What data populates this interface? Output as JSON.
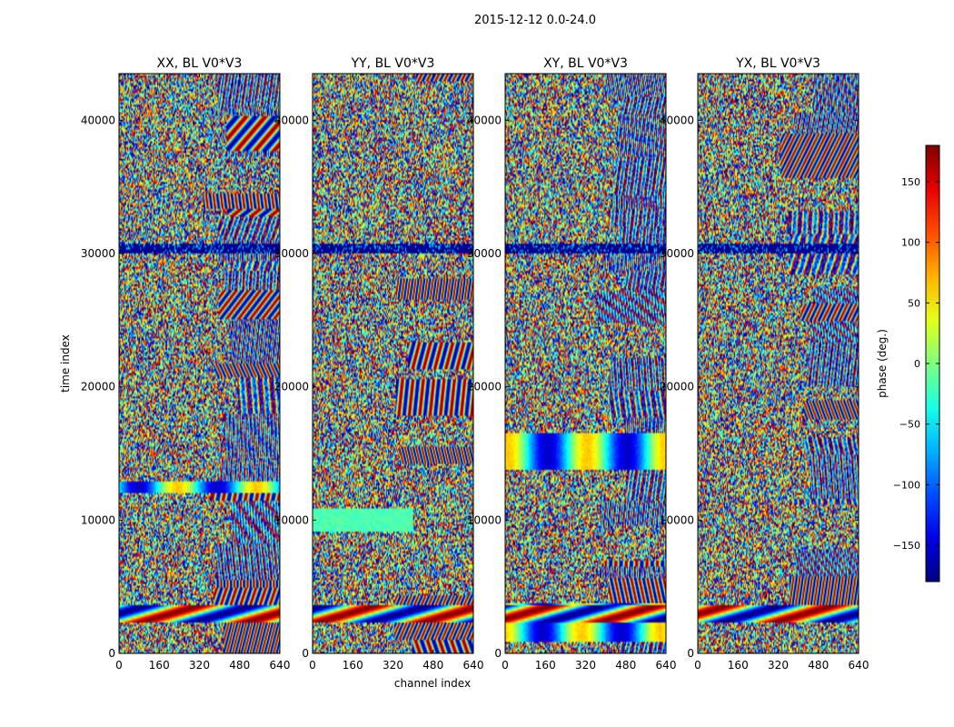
{
  "chart_data": {
    "type": "heatmap",
    "title": "2015-12-12 0.0-24.0",
    "xlabel": "channel index",
    "ylabel": "time index",
    "xlim": [
      0,
      640
    ],
    "ylim": [
      0,
      43500
    ],
    "x_ticks": [
      0,
      160,
      320,
      480,
      640
    ],
    "y_ticks": [
      0,
      10000,
      20000,
      30000,
      40000
    ],
    "value_range": [
      -180,
      180
    ],
    "colormap": "jet",
    "panels": [
      {
        "title": "XX, BL V0*V3",
        "polarization": "XX"
      },
      {
        "title": "YY, BL V0*V3",
        "polarization": "YY"
      },
      {
        "title": "XY, BL V0*V3",
        "polarization": "XY"
      },
      {
        "title": "YX, BL V0*V3",
        "polarization": "YX"
      }
    ],
    "colorbar": {
      "label": "phase (deg.)",
      "ticks": [
        150,
        100,
        50,
        0,
        -50,
        -100,
        -150
      ],
      "range": [
        -180,
        180
      ]
    }
  }
}
